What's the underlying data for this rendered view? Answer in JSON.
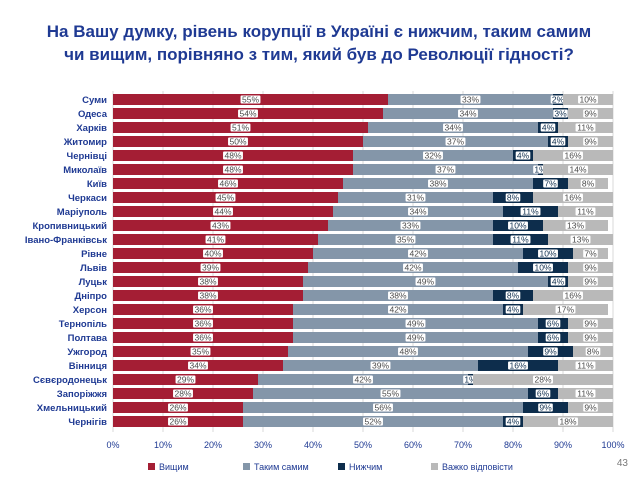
{
  "title": {
    "line1": "На Вашу думку, рівень корупції в Україні є нижчим, таким самим",
    "line2": "чи вищим, порівняно з тим, який був до Революції гідності?"
  },
  "page_number": "43",
  "colors": {
    "Вищим": "#a41e34",
    "Таким самим": "#8496a9",
    "Нижчим": "#0d2d4c",
    "Важко відповісти": "#b9b9b9"
  },
  "chart_data": {
    "type": "bar",
    "orientation": "horizontal",
    "stacked": true,
    "categories": [
      "Суми",
      "Одеса",
      "Харків",
      "Житомир",
      "Чернівці",
      "Миколаїв",
      "Київ",
      "Черкаси",
      "Маріуполь",
      "Кропивницький",
      "Івано-Франківськ",
      "Рівне",
      "Львів",
      "Луцьк",
      "Дніпро",
      "Херсон",
      "Тернопіль",
      "Полтава",
      "Ужгород",
      "Вінниця",
      "Сєвєродонецьк",
      "Запоріжжя",
      "Хмельницький",
      "Чернігів"
    ],
    "series": [
      {
        "name": "Вищим",
        "values": [
          55,
          54,
          51,
          50,
          48,
          48,
          46,
          45,
          44,
          43,
          41,
          40,
          39,
          38,
          38,
          36,
          36,
          36,
          35,
          34,
          29,
          28,
          26,
          26
        ]
      },
      {
        "name": "Таким самим",
        "values": [
          33,
          34,
          34,
          37,
          32,
          37,
          38,
          31,
          34,
          33,
          35,
          42,
          42,
          49,
          38,
          42,
          49,
          49,
          48,
          39,
          42,
          55,
          56,
          52
        ]
      },
      {
        "name": "Нижчим",
        "values": [
          2,
          3,
          4,
          4,
          4,
          1,
          7,
          8,
          11,
          10,
          11,
          10,
          10,
          4,
          8,
          4,
          6,
          6,
          9,
          16,
          1,
          6,
          9,
          4
        ]
      },
      {
        "name": "Важко відповісти",
        "values": [
          10,
          9,
          11,
          9,
          16,
          14,
          8,
          16,
          11,
          13,
          13,
          7,
          9,
          9,
          16,
          17,
          9,
          9,
          8,
          11,
          28,
          11,
          9,
          18
        ]
      }
    ],
    "x_ticks": [
      "0%",
      "10%",
      "20%",
      "30%",
      "40%",
      "50%",
      "60%",
      "70%",
      "80%",
      "90%",
      "100%"
    ],
    "xlim": [
      0,
      100
    ],
    "grid": true,
    "legend_position": "bottom"
  }
}
